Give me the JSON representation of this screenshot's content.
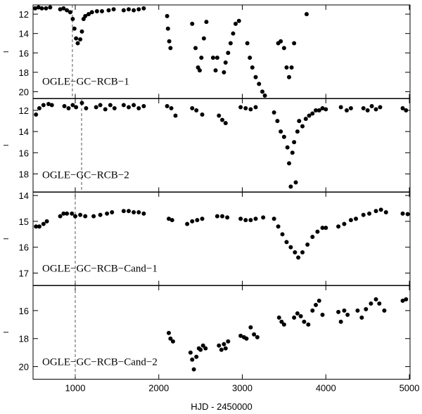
{
  "chart_data": [
    {
      "type": "scatter",
      "annotation": "OGLE−GC−RCB−1",
      "ylabel": "I",
      "color": "#000000",
      "y_inverted": true,
      "xlim": [
        495,
        5008
      ],
      "xticks": [
        1000,
        2000,
        3000,
        4000,
        5000
      ],
      "show_xtick_labels": false,
      "ylim": [
        11.05,
        20.73
      ],
      "yticks": [
        12,
        14,
        16,
        18,
        20
      ],
      "dashed_line_x": 966,
      "x": [
        520,
        560,
        600,
        650,
        700,
        820,
        860,
        900,
        940,
        970,
        990,
        1010,
        1030,
        1060,
        1080,
        1100,
        1120,
        1160,
        1200,
        1260,
        1320,
        1400,
        1460,
        1580,
        1640,
        1700,
        1760,
        1820,
        2100,
        2110,
        2125,
        2140,
        2400,
        2440,
        2470,
        2490,
        2510,
        2540,
        2570,
        2650,
        2680,
        2700,
        2780,
        2800,
        2830,
        2860,
        2890,
        2920,
        2960,
        3060,
        3090,
        3120,
        3160,
        3200,
        3240,
        3270,
        3430,
        3460,
        3500,
        3530,
        3560,
        3590,
        3620,
        3770
      ],
      "values": [
        11.4,
        11.3,
        11.4,
        11.4,
        11.3,
        11.5,
        11.4,
        11.6,
        11.8,
        12.5,
        13.5,
        14.5,
        15,
        14.6,
        13.8,
        12.5,
        12.2,
        12,
        11.8,
        11.7,
        11.7,
        11.6,
        11.5,
        11.6,
        11.5,
        11.6,
        11.5,
        11.4,
        12.2,
        13.5,
        14.8,
        15.5,
        13,
        15.5,
        17.5,
        17.8,
        16.5,
        14.5,
        12.8,
        16.5,
        17.8,
        16.5,
        18,
        17,
        16,
        15,
        14,
        13,
        12.7,
        15,
        16.5,
        17.5,
        18.5,
        19.2,
        20,
        20.4,
        15,
        14.8,
        15.5,
        17.5,
        18.5,
        17.5,
        15,
        12
      ]
    },
    {
      "type": "scatter",
      "annotation": "OGLE−GC−RCB−2",
      "ylabel": "I",
      "color": "#000000",
      "y_inverted": true,
      "xlim": [
        495,
        5008
      ],
      "xticks": [
        1000,
        2000,
        3000,
        4000,
        5000
      ],
      "show_xtick_labels": false,
      "ylim": [
        10.87,
        19.73
      ],
      "yticks": [
        12,
        14,
        16,
        18
      ],
      "dashed_line_x": 1076,
      "x": [
        530,
        570,
        620,
        680,
        720,
        870,
        920,
        970,
        1010,
        1080,
        1130,
        1250,
        1300,
        1360,
        1420,
        1470,
        1580,
        1640,
        1700,
        1760,
        1820,
        2100,
        2150,
        2200,
        2400,
        2450,
        2520,
        2720,
        2760,
        2800,
        2980,
        3040,
        3100,
        3160,
        3380,
        3420,
        3460,
        3500,
        3540,
        3560,
        3580,
        3600,
        3620,
        3640,
        3660,
        3680,
        3720,
        3760,
        3800,
        3840,
        3880,
        3920,
        3960,
        4000,
        4180,
        4250,
        4300,
        4450,
        4500,
        4550,
        4600,
        4650,
        4920,
        4960
      ],
      "values": [
        12.4,
        11.8,
        11.5,
        11.4,
        11.5,
        11.6,
        11.8,
        11.5,
        11.7,
        11.3,
        11.8,
        11.7,
        11.5,
        11.9,
        11.5,
        11.8,
        11.5,
        11.7,
        11.5,
        11.8,
        11.6,
        11.6,
        11.8,
        12.5,
        11.8,
        12,
        12.4,
        12.5,
        12.9,
        13.2,
        11.7,
        11.8,
        11.9,
        11.7,
        12.2,
        13,
        14,
        14.5,
        15.5,
        17,
        19.2,
        16,
        15,
        18.8,
        14,
        13,
        13.5,
        12.8,
        12.5,
        12.3,
        12,
        12,
        11.8,
        11.9,
        11.7,
        12,
        11.8,
        11.8,
        12,
        11.6,
        11.9,
        11.7,
        11.8,
        12
      ]
    },
    {
      "type": "scatter",
      "annotation": "OGLE−GC−RCB−Cand−1",
      "ylabel": "I",
      "color": "#000000",
      "y_inverted": true,
      "xlim": [
        495,
        5008
      ],
      "xticks": [
        1000,
        2000,
        3000,
        4000,
        5000
      ],
      "show_xtick_labels": false,
      "ylim": [
        13.86,
        17.49
      ],
      "yticks": [
        14,
        15,
        16,
        17
      ],
      "dashed_line_x": 1000,
      "x": [
        530,
        570,
        620,
        660,
        820,
        860,
        900,
        960,
        1000,
        1060,
        1120,
        1220,
        1300,
        1380,
        1440,
        1580,
        1640,
        1700,
        1760,
        1820,
        2120,
        2160,
        2340,
        2400,
        2460,
        2520,
        2700,
        2760,
        2820,
        2980,
        3040,
        3100,
        3160,
        3250,
        3380,
        3430,
        3480,
        3530,
        3580,
        3630,
        3670,
        3720,
        3780,
        3840,
        3900,
        3960,
        4000,
        4150,
        4220,
        4300,
        4360,
        4450,
        4520,
        4600,
        4660,
        4720,
        4920,
        4980
      ],
      "values": [
        15.2,
        15.2,
        15.1,
        15.0,
        14.8,
        14.7,
        14.7,
        14.7,
        14.8,
        14.75,
        14.8,
        14.8,
        14.75,
        14.7,
        14.65,
        14.6,
        14.6,
        14.65,
        14.65,
        14.7,
        14.9,
        14.95,
        15.1,
        15.0,
        14.95,
        14.9,
        14.8,
        14.8,
        14.85,
        14.9,
        14.95,
        14.95,
        14.9,
        14.85,
        14.9,
        15.2,
        15.5,
        15.8,
        16.0,
        16.2,
        16.4,
        16.2,
        15.9,
        15.6,
        15.4,
        15.25,
        15.25,
        15.2,
        15.1,
        14.95,
        14.9,
        14.75,
        14.7,
        14.6,
        14.55,
        14.65,
        14.7,
        14.72
      ]
    },
    {
      "type": "scatter",
      "annotation": "OGLE−GC−RCB−Cand−2",
      "ylabel": "I",
      "xlabel": "HJD - 2450000",
      "color": "#000000",
      "y_inverted": true,
      "xlim": [
        495,
        5008
      ],
      "xticks": [
        1000,
        2000,
        3000,
        4000,
        5000
      ],
      "show_xtick_labels": true,
      "ylim": [
        14.2,
        20.9
      ],
      "yticks": [
        16,
        18,
        20
      ],
      "dashed_line_x": 1000,
      "x": [
        2120,
        2140,
        2170,
        2380,
        2400,
        2420,
        2450,
        2480,
        2500,
        2530,
        2560,
        2720,
        2750,
        2780,
        2800,
        2830,
        2980,
        3020,
        3050,
        3100,
        3140,
        3180,
        3440,
        3470,
        3500,
        3620,
        3660,
        3700,
        3740,
        3790,
        3840,
        3880,
        3920,
        3960,
        4150,
        4180,
        4220,
        4260,
        4380,
        4430,
        4480,
        4540,
        4600,
        4640,
        4700,
        4920,
        4960
      ],
      "values": [
        17.6,
        18,
        18.2,
        19,
        19.5,
        20.2,
        19.3,
        18.7,
        18.8,
        18.5,
        18.7,
        18.5,
        18.8,
        18.4,
        18.7,
        18.2,
        17.8,
        17.9,
        18,
        17.2,
        17.7,
        17.9,
        16.5,
        16.8,
        17.0,
        16.5,
        16.2,
        16.4,
        16.8,
        17.0,
        16.0,
        15.6,
        15.3,
        16.3,
        16.1,
        16.8,
        16.0,
        16.3,
        16.0,
        16.5,
        15.9,
        15.5,
        15.2,
        15.5,
        16.0,
        15.3,
        15.2
      ]
    }
  ]
}
